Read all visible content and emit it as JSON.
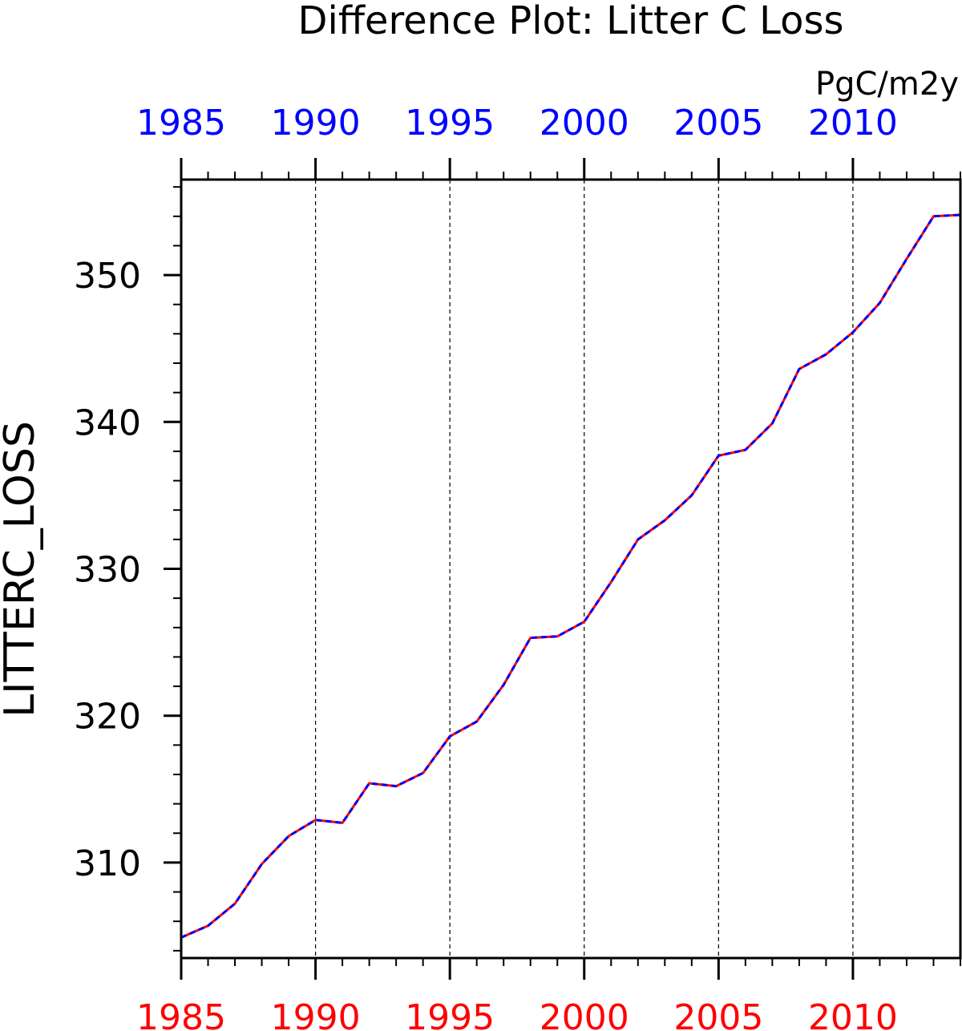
{
  "chart_data": {
    "type": "line",
    "title": "Difference Plot: Litter C Loss",
    "units": "PgC/m2y",
    "ylabel": "LITTERC_LOSS",
    "xlabel": "",
    "xlim": [
      1985,
      2014
    ],
    "ylim": [
      303.5,
      356.5
    ],
    "x_major_ticks": [
      1985,
      1990,
      1995,
      2000,
      2005,
      2010
    ],
    "x_tick_labels_top": [
      "1985",
      "1990",
      "1995",
      "2000",
      "2005",
      "2010"
    ],
    "x_tick_labels_bottom": [
      "1985",
      "1990",
      "1995",
      "2000",
      "2005",
      "2010"
    ],
    "y_major_ticks": [
      310,
      320,
      330,
      340,
      350
    ],
    "y_tick_labels": [
      "310",
      "320",
      "330",
      "340",
      "350"
    ],
    "vertical_gridlines": true,
    "top_axis_color": "#0000ff",
    "bottom_axis_color": "#ff0000",
    "x": [
      1985,
      1986,
      1987,
      1988,
      1989,
      1990,
      1991,
      1992,
      1993,
      1994,
      1995,
      1996,
      1997,
      1998,
      1999,
      2000,
      2001,
      2002,
      2003,
      2004,
      2005,
      2006,
      2007,
      2008,
      2009,
      2010,
      2011,
      2012,
      2013,
      2014
    ],
    "series": [
      {
        "color": "#ff0000",
        "dash": "solid",
        "values": [
          304.9,
          305.7,
          307.2,
          309.9,
          311.8,
          312.9,
          312.7,
          315.4,
          315.2,
          316.1,
          318.6,
          319.6,
          322.1,
          325.3,
          325.4,
          326.4,
          329.1,
          332.0,
          333.3,
          335.0,
          337.7,
          338.1,
          339.9,
          343.6,
          344.6,
          346.1,
          348.1,
          351.1,
          354.0,
          354.1
        ]
      },
      {
        "color": "#0000ff",
        "dash": "dashed",
        "values": [
          304.9,
          305.7,
          307.2,
          309.9,
          311.8,
          312.9,
          312.7,
          315.4,
          315.2,
          316.1,
          318.6,
          319.6,
          322.1,
          325.3,
          325.4,
          326.4,
          329.1,
          332.0,
          333.3,
          335.0,
          337.7,
          338.1,
          339.9,
          343.6,
          344.6,
          346.1,
          348.1,
          351.1,
          354.0,
          354.1
        ]
      }
    ]
  }
}
